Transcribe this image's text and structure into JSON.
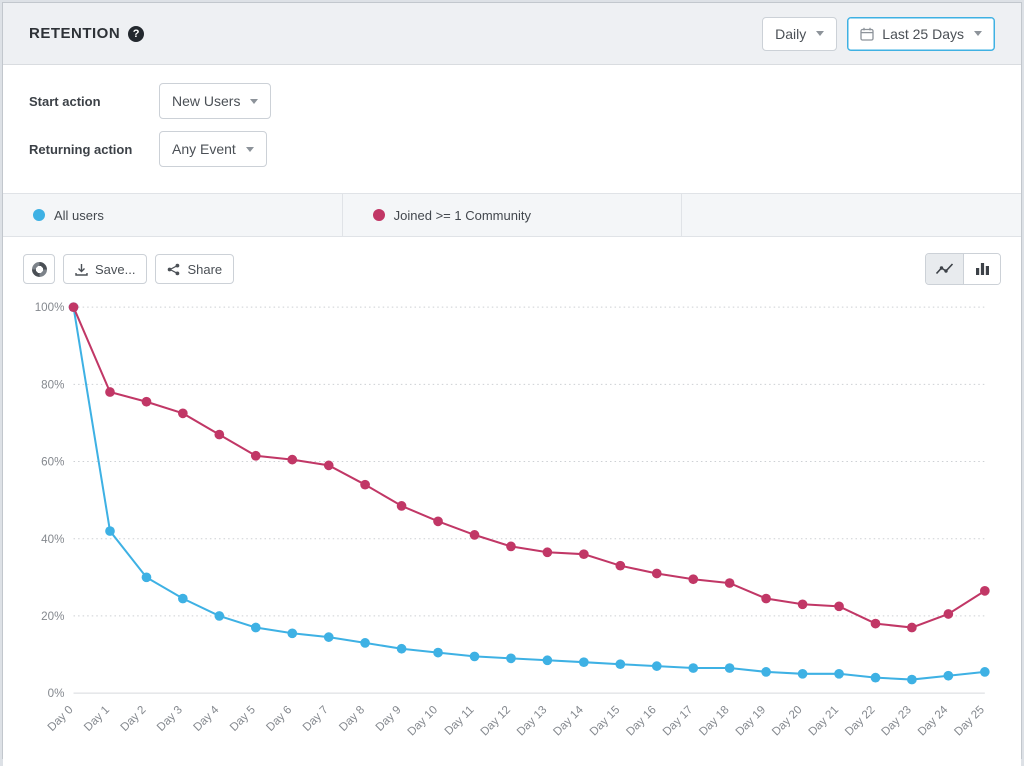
{
  "header": {
    "title": "RETENTION",
    "granularity_dropdown": "Daily",
    "date_range_dropdown": "Last 25 Days"
  },
  "controls": {
    "start_action_label": "Start action",
    "start_action_value": "New Users",
    "returning_action_label": "Returning action",
    "returning_action_value": "Any Event"
  },
  "legend": [
    {
      "label": "All users",
      "color": "#3eb1e4"
    },
    {
      "label": "Joined >= 1 Community",
      "color": "#c13766"
    }
  ],
  "toolbar": {
    "save_label": "Save...",
    "share_label": "Share",
    "chart_type_active": "line"
  },
  "icons": [
    "help-icon",
    "calendar-icon",
    "chevron-down-icon",
    "palette-icon",
    "download-icon",
    "share-icon",
    "line-chart-icon",
    "bar-chart-icon"
  ],
  "chart_data": {
    "type": "line",
    "title": "",
    "xlabel": "",
    "ylabel": "",
    "x": [
      "Day 0",
      "Day 1",
      "Day 2",
      "Day 3",
      "Day 4",
      "Day 5",
      "Day 6",
      "Day 7",
      "Day 8",
      "Day 9",
      "Day 10",
      "Day 11",
      "Day 12",
      "Day 13",
      "Day 14",
      "Day 15",
      "Day 16",
      "Day 17",
      "Day 18",
      "Day 19",
      "Day 20",
      "Day 21",
      "Day 22",
      "Day 23",
      "Day 24",
      "Day 25"
    ],
    "ylim": [
      0,
      100
    ],
    "y_ticks": [
      0,
      20,
      40,
      60,
      80,
      100
    ],
    "y_tick_suffix": "%",
    "grid": "dotted-horizontal",
    "legend_position": "top-bar",
    "series": [
      {
        "name": "All users",
        "color": "#3eb1e4",
        "values": [
          100,
          42,
          30,
          24.5,
          20,
          17,
          15.5,
          14.5,
          13,
          11.5,
          10.5,
          9.5,
          9,
          8.5,
          8,
          7.5,
          7,
          6.5,
          6.5,
          5.5,
          5,
          5,
          4,
          3.5,
          4.5,
          5.5
        ]
      },
      {
        "name": "Joined >= 1 Community",
        "color": "#c13766",
        "values": [
          100,
          78,
          75.5,
          72.5,
          67,
          61.5,
          60.5,
          59,
          54,
          48.5,
          44.5,
          41,
          38,
          36.5,
          36,
          33,
          31,
          29.5,
          28.5,
          24.5,
          23,
          22.5,
          18,
          17,
          20.5,
          26.5
        ]
      }
    ]
  }
}
